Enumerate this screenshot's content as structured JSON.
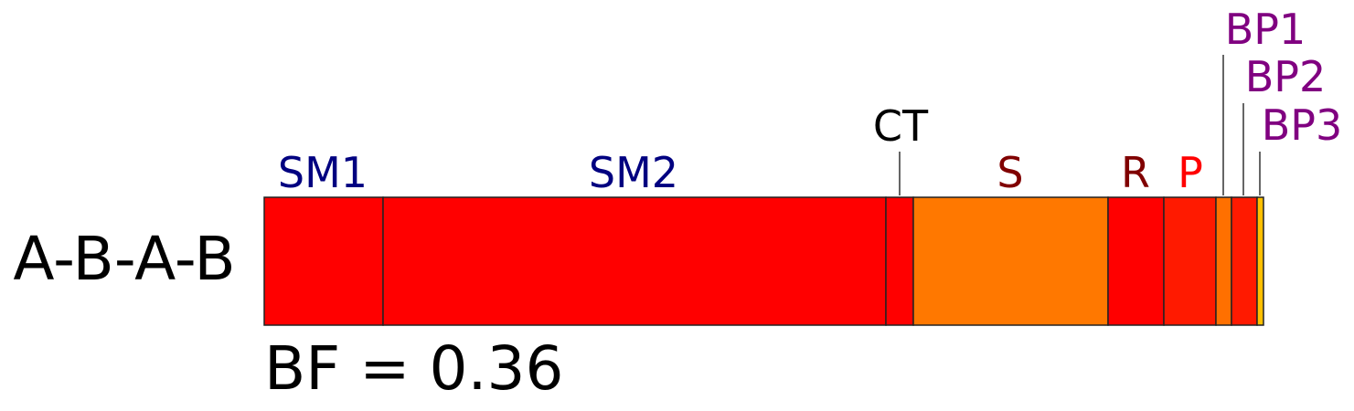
{
  "row_label": "A-B-A-B",
  "bf_text": "BF = 0.36",
  "segments": [
    {
      "label": "SM1",
      "color": "#ff0000",
      "label_color": "#000080"
    },
    {
      "label": "SM2",
      "color": "#ff0000",
      "label_color": "#000080"
    },
    {
      "label": "CT",
      "color": "#ff0000",
      "label_color": "#000000"
    },
    {
      "label": "S",
      "color": "#ff7800",
      "label_color": "#800000"
    },
    {
      "label": "R",
      "color": "#ff0000",
      "label_color": "#800000"
    },
    {
      "label": "P",
      "color": "#ff1a00",
      "label_color": "#ff0000"
    },
    {
      "label": "BP1",
      "color": "#ff7000",
      "label_color": "#800080"
    },
    {
      "label": "BP2",
      "color": "#ff1a00",
      "label_color": "#800080"
    },
    {
      "label": "BP3",
      "color": "#ffc000",
      "label_color": "#800080"
    }
  ]
}
